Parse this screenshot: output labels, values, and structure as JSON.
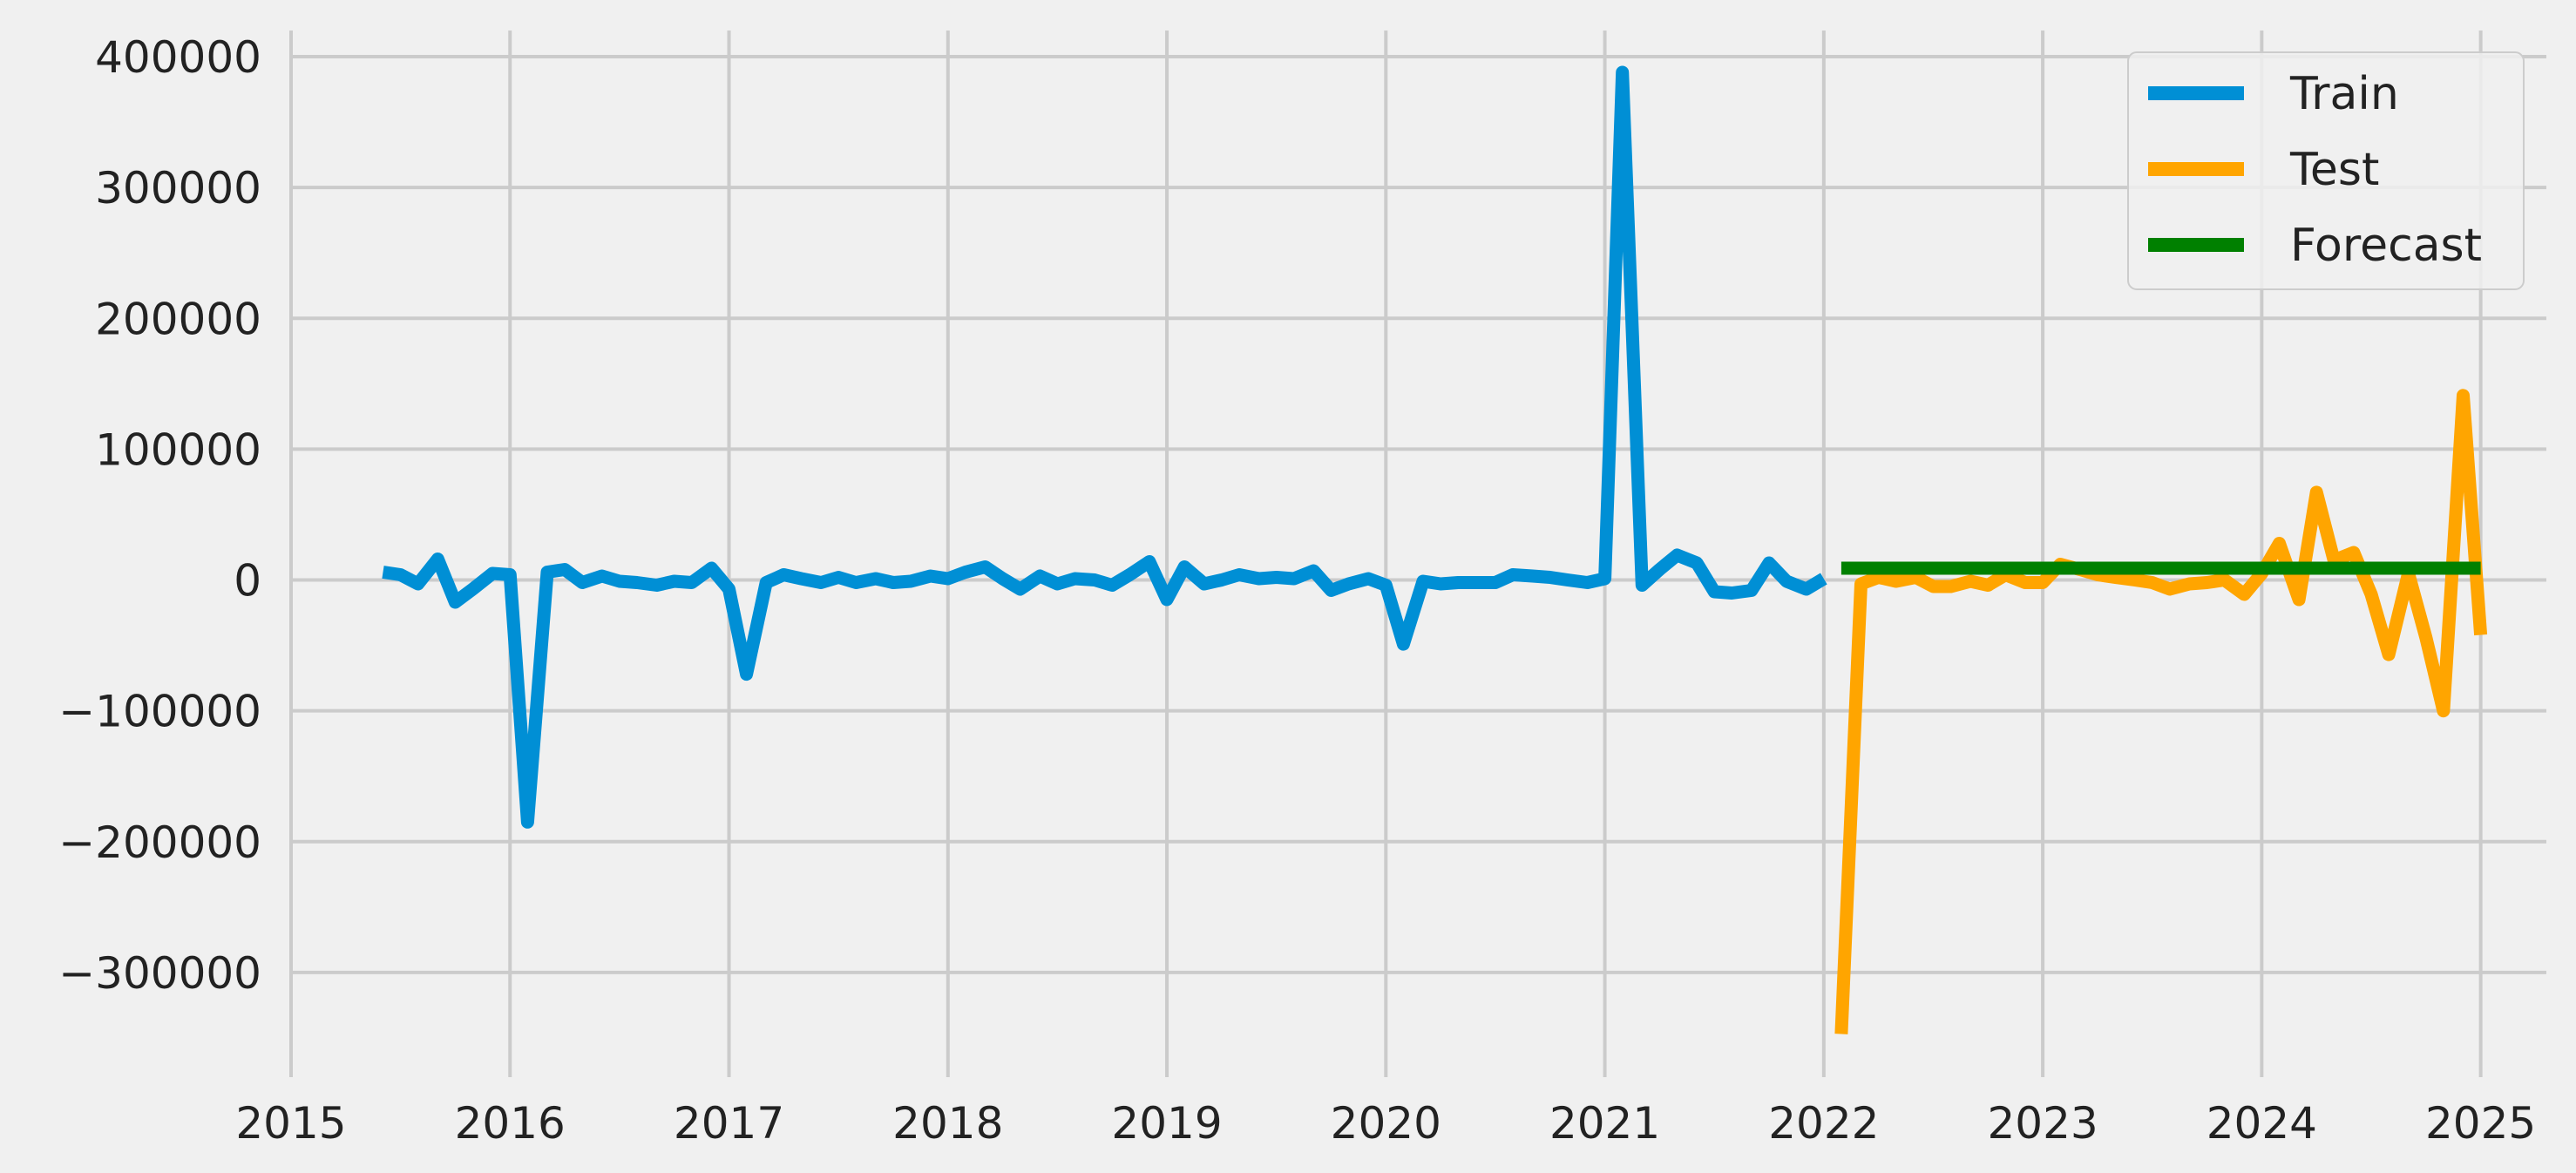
{
  "chart_data": {
    "type": "line",
    "xlabel": "",
    "ylabel": "",
    "xlim": [
      2015.0,
      2025.3
    ],
    "ylim": [
      -380000,
      420000
    ],
    "x_ticks": [
      2015,
      2016,
      2017,
      2018,
      2019,
      2020,
      2021,
      2022,
      2023,
      2024,
      2025
    ],
    "y_ticks": [
      -300000,
      -200000,
      -100000,
      0,
      100000,
      200000,
      300000,
      400000
    ],
    "grid": true,
    "legend": "top-right",
    "series": [
      {
        "name": "Train",
        "color": "#008fd5",
        "x": [
          2015.42,
          2015.5,
          2015.58,
          2015.67,
          2015.75,
          2015.83,
          2015.92,
          2016.0,
          2016.08,
          2016.17,
          2016.25,
          2016.33,
          2016.42,
          2016.5,
          2016.58,
          2016.67,
          2016.75,
          2016.83,
          2016.92,
          2017.0,
          2017.08,
          2017.17,
          2017.25,
          2017.33,
          2017.42,
          2017.5,
          2017.58,
          2017.67,
          2017.75,
          2017.83,
          2017.92,
          2018.0,
          2018.08,
          2018.17,
          2018.25,
          2018.33,
          2018.42,
          2018.5,
          2018.58,
          2018.67,
          2018.75,
          2018.83,
          2018.92,
          2019.0,
          2019.08,
          2019.17,
          2019.25,
          2019.33,
          2019.42,
          2019.5,
          2019.58,
          2019.67,
          2019.75,
          2019.83,
          2019.92,
          2020.0,
          2020.08,
          2020.17,
          2020.25,
          2020.33,
          2020.42,
          2020.5,
          2020.58,
          2020.67,
          2020.75,
          2020.83,
          2020.92,
          2021.0,
          2021.08,
          2021.17,
          2021.25,
          2021.33,
          2021.42,
          2021.5,
          2021.58,
          2021.67,
          2021.75,
          2021.83,
          2021.92,
          2022.0
        ],
        "y": [
          6000,
          4000,
          -3000,
          16000,
          -17000,
          -7000,
          5000,
          4000,
          -185000,
          6000,
          8000,
          -2000,
          3000,
          -1000,
          -2000,
          -4000,
          -1000,
          -2000,
          9000,
          -7000,
          -72000,
          -2000,
          4000,
          1000,
          -2000,
          2000,
          -2000,
          1000,
          -2000,
          -1000,
          3000,
          1000,
          6000,
          10000,
          1000,
          -7000,
          3000,
          -3000,
          1000,
          0,
          -4000,
          4000,
          14000,
          -15000,
          10000,
          -3000,
          0,
          4000,
          1000,
          2000,
          1000,
          7000,
          -8000,
          -3000,
          1000,
          -4000,
          -49000,
          -1000,
          -3000,
          -2000,
          -2000,
          -2000,
          4000,
          3000,
          2000,
          0,
          -2000,
          1000,
          388000,
          -4000,
          8000,
          19000,
          13000,
          -9000,
          -10000,
          -8000,
          13000,
          -1000,
          -7000,
          1000
        ]
      },
      {
        "name": "Test",
        "color": "#ffa500",
        "x": [
          2022.08,
          2022.17,
          2022.25,
          2022.33,
          2022.42,
          2022.5,
          2022.58,
          2022.67,
          2022.75,
          2022.83,
          2022.92,
          2023.0,
          2023.08,
          2023.17,
          2023.25,
          2023.33,
          2023.42,
          2023.5,
          2023.58,
          2023.67,
          2023.75,
          2023.83,
          2023.92,
          2024.0,
          2024.08,
          2024.17,
          2024.25,
          2024.33,
          2024.42,
          2024.5,
          2024.58,
          2024.67,
          2024.75,
          2024.83,
          2024.92,
          2025.0
        ],
        "y": [
          -347000,
          -3000,
          2000,
          -1000,
          2000,
          -5000,
          -5000,
          -1000,
          -4000,
          4000,
          -2000,
          -2000,
          12000,
          8000,
          4000,
          2000,
          0,
          -2000,
          -7000,
          -3000,
          -2000,
          0,
          -11000,
          5000,
          28000,
          -15000,
          67000,
          15000,
          21000,
          -11000,
          -57000,
          5000,
          -44000,
          -100000,
          141000,
          -42000
        ]
      },
      {
        "name": "Forecast",
        "color": "#008000",
        "x": [
          2022.08,
          2025.0
        ],
        "y": [
          9000,
          9000
        ]
      }
    ]
  }
}
